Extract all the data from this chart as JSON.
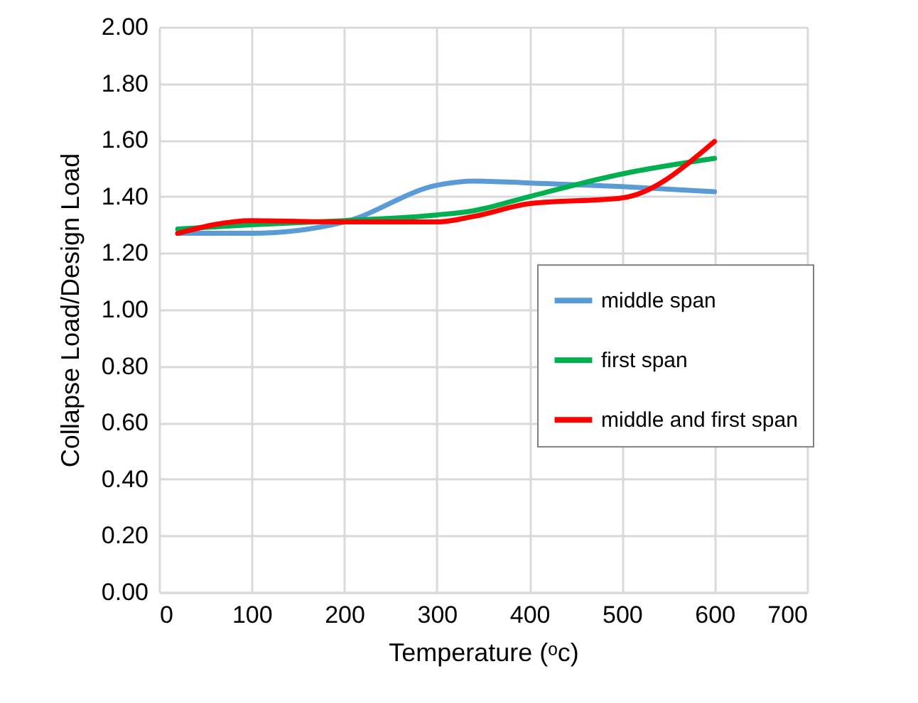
{
  "chart_data": {
    "type": "line",
    "xlabel": "Temperature (ᵒc)",
    "ylabel": "Collapse Load/Design Load",
    "x": [
      20,
      100,
      200,
      300,
      340,
      400,
      500,
      600
    ],
    "series": [
      {
        "name": "middle span",
        "color": "#5b9bd5",
        "values": [
          1.27,
          1.27,
          1.31,
          1.44,
          1.455,
          1.448,
          1.435,
          1.417
        ]
      },
      {
        "name": "first span",
        "color": "#00b050",
        "values": [
          1.285,
          1.3,
          1.315,
          1.335,
          1.35,
          1.4,
          1.48,
          1.535
        ]
      },
      {
        "name": "middle and first span",
        "color": "#ff0000",
        "values": [
          1.27,
          1.315,
          1.31,
          1.31,
          1.33,
          1.375,
          1.395,
          1.595
        ]
      }
    ],
    "xlim": [
      0,
      700
    ],
    "xticks": [
      0,
      100,
      200,
      300,
      400,
      500,
      600,
      700
    ],
    "ylim": [
      0,
      2
    ],
    "yticks": [
      {
        "value": 0,
        "label": "0.00"
      },
      {
        "value": 0.2,
        "label": "0.20"
      },
      {
        "value": 0.4,
        "label": "0.40"
      },
      {
        "value": 0.6,
        "label": "0.60"
      },
      {
        "value": 0.8,
        "label": "0.80"
      },
      {
        "value": 1,
        "label": "1.00"
      },
      {
        "value": 1.2,
        "label": "1.20"
      },
      {
        "value": 1.4,
        "label": "1.40"
      },
      {
        "value": 1.6,
        "label": "1.60"
      },
      {
        "value": 1.8,
        "label": "1.80"
      },
      {
        "value": 2,
        "label": "2.00"
      }
    ],
    "grid": true,
    "legend": "right",
    "marker": "none",
    "line_style": "solid"
  }
}
